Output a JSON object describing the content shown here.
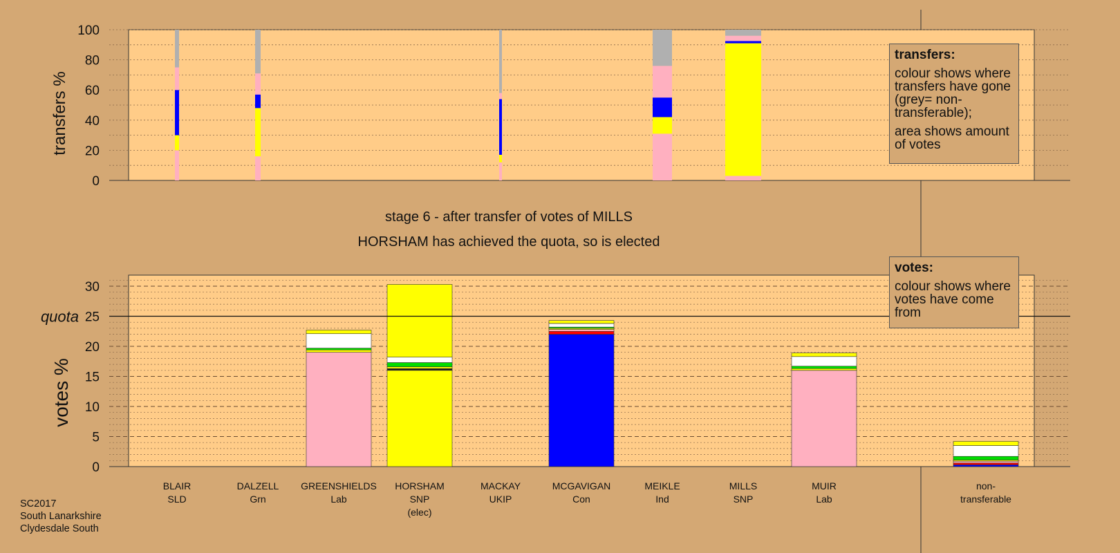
{
  "chart_data": [
    {
      "type": "bar",
      "ylabel": "transfers %",
      "ylim": [
        0,
        100
      ],
      "yticks": [
        0,
        20,
        40,
        60,
        80,
        100
      ],
      "categories": [
        "BLAIR",
        "DALZELL",
        "GREENSHIELDS",
        "HORSHAM",
        "MACKAY",
        "MCGAVIGAN",
        "MEIKLE",
        "MILLS",
        "MUIR",
        "non-transferable"
      ],
      "bars": [
        {
          "candidate": "BLAIR",
          "segments": [
            {
              "color": "#ffb0c0",
              "from": 0,
              "to": 20
            },
            {
              "color": "#ffff00",
              "from": 20,
              "to": 30
            },
            {
              "color": "#0000ff",
              "from": 30,
              "to": 60
            },
            {
              "color": "#ffb0c0",
              "from": 60,
              "to": 75
            },
            {
              "color": "#b0b0b0",
              "from": 75,
              "to": 100
            }
          ]
        },
        {
          "candidate": "DALZELL",
          "segments": [
            {
              "color": "#ffb0c0",
              "from": 0,
              "to": 16
            },
            {
              "color": "#ffff00",
              "from": 16,
              "to": 48
            },
            {
              "color": "#0000ff",
              "from": 48,
              "to": 57
            },
            {
              "color": "#ffb0c0",
              "from": 57,
              "to": 71
            },
            {
              "color": "#b0b0b0",
              "from": 71,
              "to": 100
            }
          ]
        },
        {
          "candidate": "MACKAY",
          "segments": [
            {
              "color": "#ffb0c0",
              "from": 0,
              "to": 12
            },
            {
              "color": "#ffff00",
              "from": 12,
              "to": 17
            },
            {
              "color": "#0000ff",
              "from": 17,
              "to": 54
            },
            {
              "color": "#ffb0c0",
              "from": 54,
              "to": 58
            },
            {
              "color": "#b0b0b0",
              "from": 58,
              "to": 100
            }
          ]
        },
        {
          "candidate": "MEIKLE",
          "segments": [
            {
              "color": "#ffb0c0",
              "from": 0,
              "to": 31
            },
            {
              "color": "#ffff00",
              "from": 31,
              "to": 42
            },
            {
              "color": "#0000ff",
              "from": 42,
              "to": 55
            },
            {
              "color": "#ffb0c0",
              "from": 55,
              "to": 76
            },
            {
              "color": "#b0b0b0",
              "from": 76,
              "to": 100
            }
          ]
        },
        {
          "candidate": "MILLS",
          "segments": [
            {
              "color": "#ffb0c0",
              "from": 0,
              "to": 3
            },
            {
              "color": "#ffff00",
              "from": 3,
              "to": 91
            },
            {
              "color": "#0000ff",
              "from": 91,
              "to": 92.5
            },
            {
              "color": "#ffb0c0",
              "from": 92.5,
              "to": 96
            },
            {
              "color": "#b0b0b0",
              "from": 96,
              "to": 100
            }
          ]
        }
      ]
    },
    {
      "type": "bar",
      "ylabel": "votes %",
      "quota_label": "quota",
      "quota": 25,
      "ylim": [
        0,
        32
      ],
      "yticks": [
        0,
        5,
        10,
        15,
        20,
        25,
        30
      ],
      "categories": [
        "BLAIR",
        "DALZELL",
        "GREENSHIELDS",
        "HORSHAM",
        "MACKAY",
        "MCGAVIGAN",
        "MEIKLE",
        "MILLS",
        "MUIR",
        "non-transferable"
      ],
      "bars": [
        {
          "candidate": "GREENSHIELDS",
          "segments": [
            {
              "color": "#ffb0c0",
              "from": 0,
              "to": 19
            },
            {
              "color": "#ffff00",
              "from": 19,
              "to": 19.4
            },
            {
              "color": "#00dd00",
              "from": 19.4,
              "to": 19.7
            },
            {
              "color": "#ffffff",
              "from": 19.7,
              "to": 22.1
            },
            {
              "color": "#ffff00",
              "from": 22.1,
              "to": 22.7
            }
          ]
        },
        {
          "candidate": "HORSHAM",
          "segments": [
            {
              "color": "#ffff00",
              "from": 0,
              "to": 16
            },
            {
              "color": "#1a1a1a",
              "from": 16,
              "to": 16.3
            },
            {
              "color": "#ffff00",
              "from": 16.3,
              "to": 16.6
            },
            {
              "color": "#00dd00",
              "from": 16.6,
              "to": 17.3
            },
            {
              "color": "#ffffff",
              "from": 17.3,
              "to": 18.2
            },
            {
              "color": "#ffff00",
              "from": 18.2,
              "to": 30.3
            }
          ]
        },
        {
          "candidate": "MCGAVIGAN",
          "segments": [
            {
              "color": "#0000ff",
              "from": 0,
              "to": 22
            },
            {
              "color": "#ff0000",
              "from": 22,
              "to": 22.5
            },
            {
              "color": "#ffb0c0",
              "from": 22.5,
              "to": 22.8
            },
            {
              "color": "#ffff00",
              "from": 22.8,
              "to": 23
            },
            {
              "color": "#00dd00",
              "from": 23,
              "to": 23.2
            },
            {
              "color": "#ffffff",
              "from": 23.2,
              "to": 23.8
            },
            {
              "color": "#ffff00",
              "from": 23.8,
              "to": 24.3
            }
          ]
        },
        {
          "candidate": "MUIR",
          "segments": [
            {
              "color": "#ffb0c0",
              "from": 0,
              "to": 16
            },
            {
              "color": "#ffff00",
              "from": 16,
              "to": 16.3
            },
            {
              "color": "#00dd00",
              "from": 16.3,
              "to": 16.7
            },
            {
              "color": "#ffffff",
              "from": 16.7,
              "to": 18.3
            },
            {
              "color": "#ffff00",
              "from": 18.3,
              "to": 18.9
            }
          ]
        },
        {
          "candidate": "non-transferable",
          "segments": [
            {
              "color": "#0000ff",
              "from": 0,
              "to": 0.3
            },
            {
              "color": "#ff0000",
              "from": 0.3,
              "to": 0.6
            },
            {
              "color": "#ffb0c0",
              "from": 0.6,
              "to": 0.9
            },
            {
              "color": "#ffff00",
              "from": 0.9,
              "to": 1.1
            },
            {
              "color": "#00dd00",
              "from": 1.1,
              "to": 1.7
            },
            {
              "color": "#ffffff",
              "from": 1.7,
              "to": 3.5
            },
            {
              "color": "#ffff00",
              "from": 3.5,
              "to": 4.2
            }
          ]
        }
      ]
    }
  ],
  "candidates": [
    {
      "name": "BLAIR",
      "party": "SLD",
      "note": ""
    },
    {
      "name": "DALZELL",
      "party": "Grn",
      "note": ""
    },
    {
      "name": "GREENSHIELDS",
      "party": "Lab",
      "note": ""
    },
    {
      "name": "HORSHAM",
      "party": "SNP",
      "note": "(elec)"
    },
    {
      "name": "MACKAY",
      "party": "UKIP",
      "note": ""
    },
    {
      "name": "MCGAVIGAN",
      "party": "Con",
      "note": ""
    },
    {
      "name": "MEIKLE",
      "party": "Ind",
      "note": ""
    },
    {
      "name": "MILLS",
      "party": "SNP",
      "note": ""
    },
    {
      "name": "MUIR",
      "party": "Lab",
      "note": ""
    },
    {
      "name": "non-",
      "party": "transferable",
      "note": ""
    }
  ],
  "stage": {
    "line1": "stage 6 - after transfer of votes of MILLS",
    "line2": "HORSHAM has achieved the quota, so is elected"
  },
  "legend_transfers": {
    "heading": "transfers:",
    "line1": "colour shows where transfers have gone (grey= non-transferable);",
    "line2": "area shows amount of votes"
  },
  "legend_votes": {
    "heading": "votes:",
    "line1": "colour shows where votes have come from"
  },
  "footer": {
    "line1": "SC2017",
    "line2": "South Lanarkshire",
    "line3": "Clydesdale South"
  },
  "colors": {
    "background": "#d4a874",
    "plot_area": "#ffcc88"
  }
}
